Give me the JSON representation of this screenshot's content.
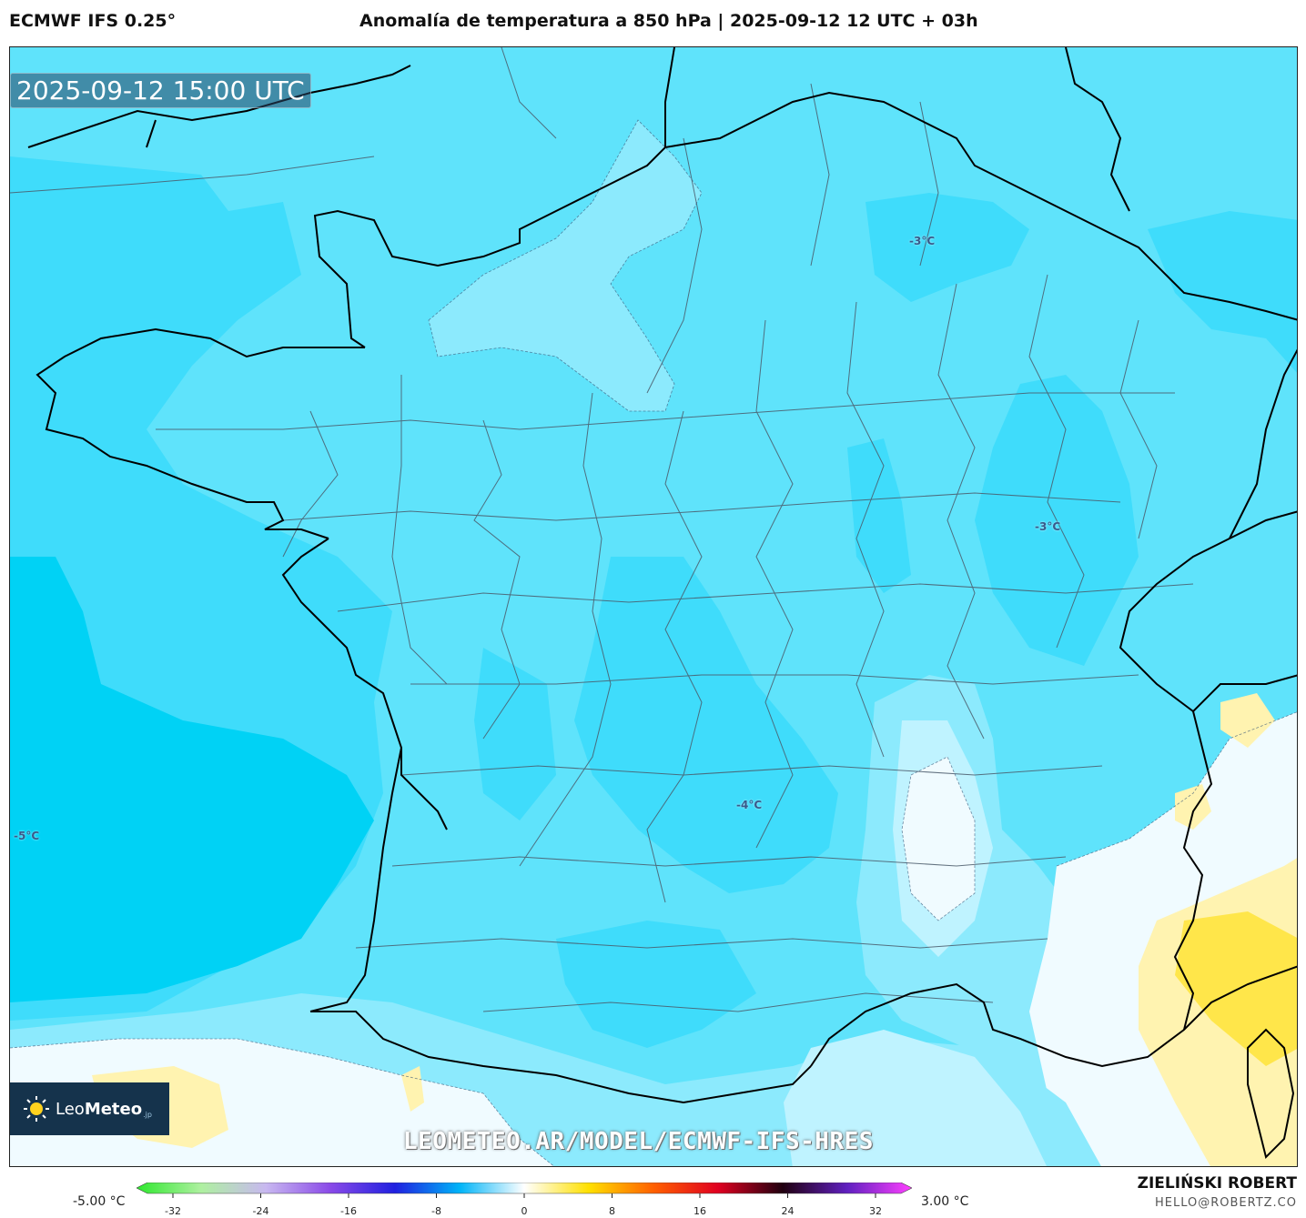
{
  "header": {
    "model": "ECMWF IFS 0.25°",
    "title": "Anomalía de temperatura a 850 hPa | 2025-09-12 12 UTC + 03h"
  },
  "map": {
    "valid_time": "2025-09-12 15:00 UTC",
    "contour_labels": [
      "-3°C",
      "-3°C",
      "-4°C",
      "-5°C"
    ],
    "watermark_url": "LEOMETEO.AR/MODEL/ECMWF-IFS-HRES",
    "logo": {
      "name_light": "Leo",
      "name_bold": "Meteo",
      "suffix": ".jp"
    },
    "colors": {
      "very_cold": "#00d2f5",
      "cold": "#3fdcfb",
      "cool": "#5fe3fb",
      "light": "#8ceafd",
      "lighter": "#bff3ff",
      "white": "#f0fbff",
      "warm1": "#fff3b0",
      "warm2": "#ffe64a"
    }
  },
  "colorbar": {
    "min_label": "-5.00 °C",
    "max_label": "3.00 °C",
    "ticks": [
      "-32",
      "-24",
      "-16",
      "-8",
      "0",
      "8",
      "16",
      "24",
      "32"
    ],
    "stops": [
      "#2ee82e",
      "#aef0a0",
      "#c8b8f0",
      "#8a4ae8",
      "#2020e0",
      "#00b4f8",
      "#ffffff",
      "#ffe000",
      "#ff6000",
      "#e00020",
      "#200010",
      "#6020c0",
      "#ff40ff"
    ]
  },
  "footer": {
    "author": "ZIELIŃSKI ROBERT",
    "email": "HELLO@ROBERTZ.CO"
  }
}
